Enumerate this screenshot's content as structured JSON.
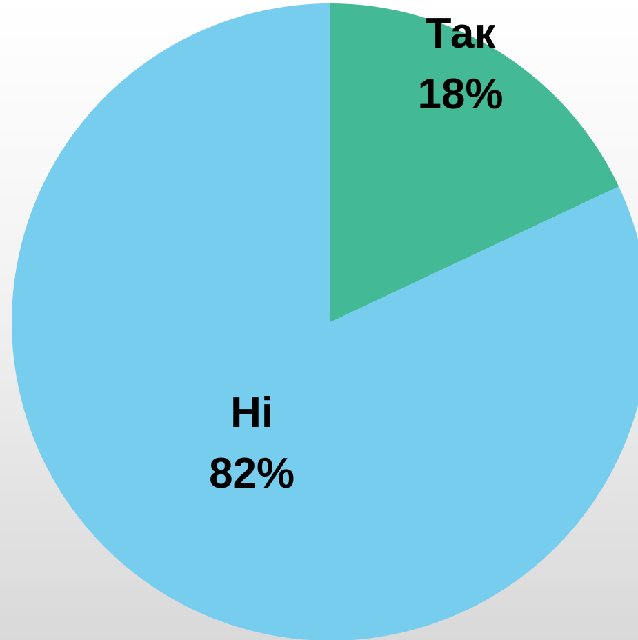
{
  "chart_data": {
    "type": "pie",
    "categories": [
      "Так",
      "Ні"
    ],
    "values": [
      18,
      82
    ],
    "value_labels": [
      "18%",
      "82%"
    ],
    "colors": [
      "#43b996",
      "#77cdee"
    ]
  }
}
